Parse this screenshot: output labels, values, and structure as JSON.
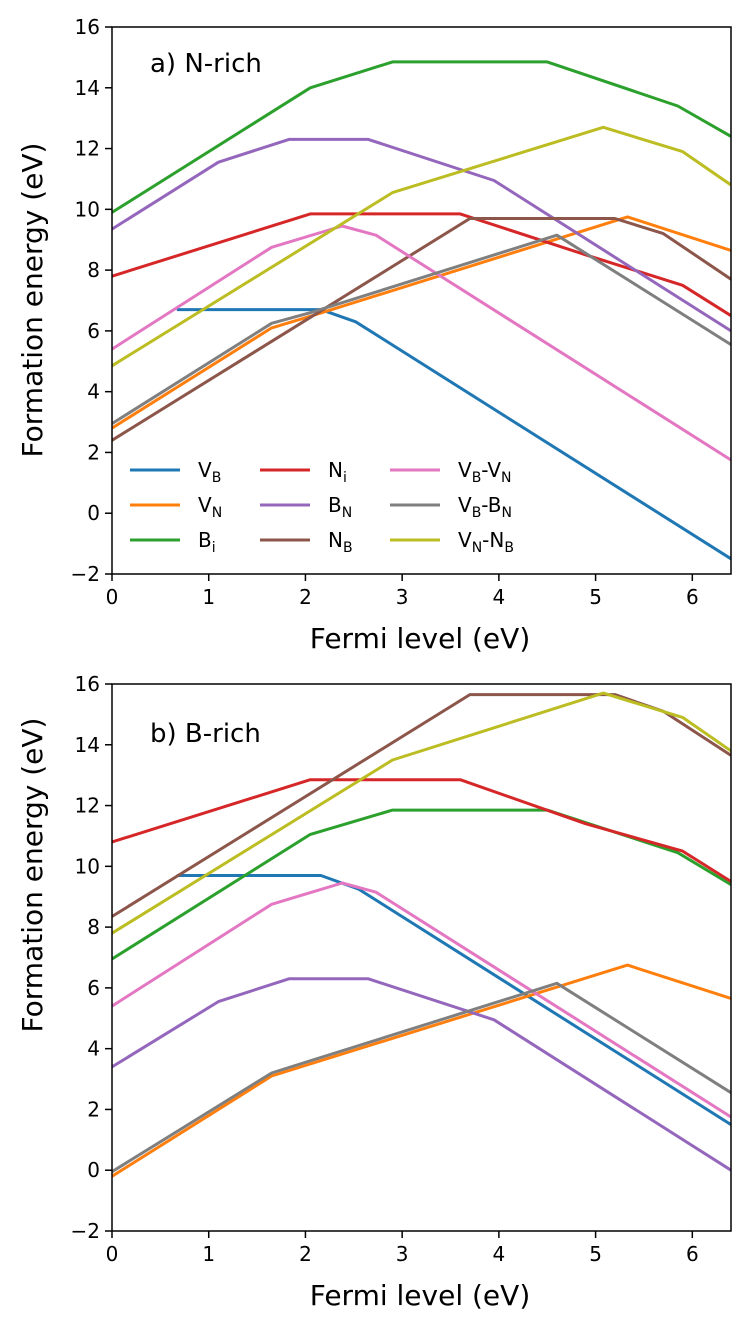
{
  "chart_data": [
    {
      "type": "line",
      "title": "a) N-rich",
      "xlabel": "Fermi level (eV)",
      "ylabel": "Formation energy (eV)",
      "xlim": [
        0,
        6.4
      ],
      "ylim": [
        -2,
        16
      ],
      "xticks": [
        "0",
        "1",
        "2",
        "3",
        "4",
        "5",
        "6"
      ],
      "yticks": [
        "−2",
        "0",
        "2",
        "4",
        "6",
        "8",
        "10",
        "12",
        "14",
        "16"
      ],
      "grid": false,
      "legend": "lower-left",
      "series": [
        {
          "name": "V_B",
          "label_main": "V",
          "label_sub": "B",
          "color": "#1f77b4",
          "points": [
            [
              0.67,
              6.7
            ],
            [
              2.16,
              6.7
            ],
            [
              2.52,
              6.3
            ],
            [
              6.4,
              -1.5
            ]
          ]
        },
        {
          "name": "V_N",
          "label_main": "V",
          "label_sub": "N",
          "color": "#ff7f0e",
          "points": [
            [
              0,
              2.8
            ],
            [
              1.65,
              6.1
            ],
            [
              2.07,
              6.5
            ],
            [
              5.33,
              9.75
            ],
            [
              6.4,
              8.65
            ]
          ]
        },
        {
          "name": "B_i",
          "label_main": "B",
          "label_sub": "i",
          "color": "#2ca02c",
          "points": [
            [
              0,
              9.9
            ],
            [
              2.05,
              14.0
            ],
            [
              2.9,
              14.85
            ],
            [
              4.5,
              14.85
            ],
            [
              5.85,
              13.4
            ],
            [
              6.4,
              12.4
            ]
          ]
        },
        {
          "name": "N_i",
          "label_main": "N",
          "label_sub": "i",
          "color": "#d62728",
          "points": [
            [
              0,
              7.8
            ],
            [
              2.05,
              9.85
            ],
            [
              3.6,
              9.85
            ],
            [
              4.9,
              8.5
            ],
            [
              5.9,
              7.5
            ],
            [
              6.4,
              6.5
            ]
          ]
        },
        {
          "name": "B_N",
          "label_main": "B",
          "label_sub": "N",
          "color": "#9467bd",
          "points": [
            [
              0,
              9.35
            ],
            [
              1.1,
              11.55
            ],
            [
              1.83,
              12.3
            ],
            [
              2.65,
              12.3
            ],
            [
              3.95,
              10.95
            ],
            [
              6.4,
              6.0
            ]
          ]
        },
        {
          "name": "N_B",
          "label_main": "N",
          "label_sub": "B",
          "color": "#8c564b",
          "points": [
            [
              0,
              2.4
            ],
            [
              3.7,
              9.7
            ],
            [
              5.2,
              9.7
            ],
            [
              5.7,
              9.2
            ],
            [
              6.4,
              7.7
            ]
          ]
        },
        {
          "name": "V_B-V_N",
          "label_main": "V",
          "label_sub": "B",
          "label_mid": "-V",
          "label_sub2": "N",
          "color": "#e377c2",
          "points": [
            [
              0,
              5.4
            ],
            [
              1.65,
              8.75
            ],
            [
              2.38,
              9.45
            ],
            [
              2.73,
              9.15
            ],
            [
              6.4,
              1.75
            ]
          ]
        },
        {
          "name": "V_B-B_N",
          "label_main": "V",
          "label_sub": "B",
          "label_mid": "-B",
          "label_sub2": "N",
          "color": "#7f7f7f",
          "points": [
            [
              0,
              2.95
            ],
            [
              1.65,
              6.25
            ],
            [
              2.05,
              6.6
            ],
            [
              4.6,
              9.15
            ],
            [
              6.4,
              5.55
            ]
          ]
        },
        {
          "name": "V_N-N_B",
          "label_main": "V",
          "label_sub": "N",
          "label_mid": "-N",
          "label_sub2": "B",
          "color": "#bcbd22",
          "points": [
            [
              0,
              4.85
            ],
            [
              2.9,
              10.55
            ],
            [
              5.08,
              12.7
            ],
            [
              5.9,
              11.9
            ],
            [
              6.4,
              10.8
            ]
          ]
        }
      ]
    },
    {
      "type": "line",
      "title": "b) B-rich",
      "xlabel": "Fermi level (eV)",
      "ylabel": "Formation energy (eV)",
      "xlim": [
        0,
        6.4
      ],
      "ylim": [
        -2,
        16
      ],
      "xticks": [
        "0",
        "1",
        "2",
        "3",
        "4",
        "5",
        "6"
      ],
      "yticks": [
        "−2",
        "0",
        "2",
        "4",
        "6",
        "8",
        "10",
        "12",
        "14",
        "16"
      ],
      "grid": false,
      "legend": "none",
      "series": [
        {
          "name": "V_B",
          "color": "#1f77b4",
          "points": [
            [
              0.67,
              9.7
            ],
            [
              2.16,
              9.7
            ],
            [
              2.55,
              9.25
            ],
            [
              6.4,
              1.5
            ]
          ]
        },
        {
          "name": "V_N",
          "color": "#ff7f0e",
          "points": [
            [
              0,
              -0.2
            ],
            [
              1.65,
              3.1
            ],
            [
              5.33,
              6.75
            ],
            [
              6.4,
              5.65
            ]
          ]
        },
        {
          "name": "B_i",
          "color": "#2ca02c",
          "points": [
            [
              0,
              6.95
            ],
            [
              2.05,
              11.05
            ],
            [
              2.9,
              11.85
            ],
            [
              4.5,
              11.85
            ],
            [
              5.85,
              10.45
            ],
            [
              6.4,
              9.4
            ]
          ]
        },
        {
          "name": "N_i",
          "color": "#d62728",
          "points": [
            [
              0,
              10.8
            ],
            [
              2.05,
              12.85
            ],
            [
              3.6,
              12.85
            ],
            [
              4.9,
              11.4
            ],
            [
              5.9,
              10.5
            ],
            [
              6.4,
              9.5
            ]
          ]
        },
        {
          "name": "B_N",
          "color": "#9467bd",
          "points": [
            [
              0,
              3.4
            ],
            [
              1.1,
              5.55
            ],
            [
              1.83,
              6.3
            ],
            [
              2.65,
              6.3
            ],
            [
              3.95,
              4.95
            ],
            [
              6.4,
              0.0
            ]
          ]
        },
        {
          "name": "N_B",
          "color": "#8c564b",
          "points": [
            [
              0,
              8.35
            ],
            [
              3.7,
              15.65
            ],
            [
              5.2,
              15.65
            ],
            [
              5.7,
              15.1
            ],
            [
              6.4,
              13.65
            ]
          ]
        },
        {
          "name": "V_B-V_N",
          "color": "#e377c2",
          "points": [
            [
              0,
              5.4
            ],
            [
              1.65,
              8.75
            ],
            [
              2.38,
              9.45
            ],
            [
              2.73,
              9.15
            ],
            [
              6.4,
              1.75
            ]
          ]
        },
        {
          "name": "V_B-B_N",
          "color": "#7f7f7f",
          "points": [
            [
              0,
              -0.05
            ],
            [
              1.65,
              3.2
            ],
            [
              2.05,
              3.6
            ],
            [
              4.6,
              6.15
            ],
            [
              6.4,
              2.55
            ]
          ]
        },
        {
          "name": "V_N-N_B",
          "color": "#bcbd22",
          "points": [
            [
              0,
              7.8
            ],
            [
              2.9,
              13.5
            ],
            [
              5.08,
              15.7
            ],
            [
              5.9,
              14.9
            ],
            [
              6.4,
              13.8
            ]
          ]
        }
      ]
    }
  ]
}
